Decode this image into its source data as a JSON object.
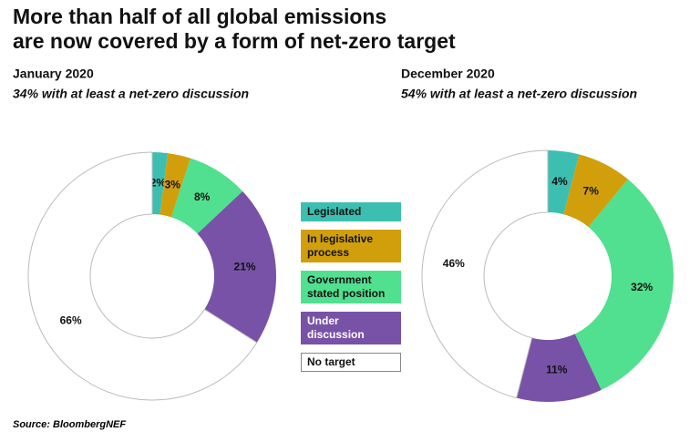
{
  "title": [
    "More than half of all global emissions",
    "are now covered by a form of net-zero target"
  ],
  "source": "Source: BloombergNEF",
  "chart_data": [
    {
      "type": "pie",
      "donut": true,
      "title": "January 2020",
      "subtitle": "34% with at least a net-zero discussion",
      "categories": [
        "Legislated",
        "In legislative process",
        "Government stated position",
        "Under discussion",
        "No target"
      ],
      "values": [
        2,
        3,
        8,
        21,
        66
      ],
      "value_labels": [
        "2%",
        "3%",
        "8%",
        "21%",
        "66%"
      ],
      "colors": [
        "#3cbfb0",
        "#d19f0c",
        "#50e08f",
        "#7852a7",
        "#ffffff"
      ]
    },
    {
      "type": "pie",
      "donut": true,
      "title": "December 2020",
      "subtitle": "54% with at least a net-zero discussion",
      "categories": [
        "Legislated",
        "In legislative process",
        "Government stated position",
        "Under discussion",
        "No target"
      ],
      "values": [
        4,
        7,
        32,
        11,
        46
      ],
      "value_labels": [
        "4%",
        "7%",
        "32%",
        "11%",
        "46%"
      ],
      "colors": [
        "#3cbfb0",
        "#d19f0c",
        "#50e08f",
        "#7852a7",
        "#ffffff"
      ]
    }
  ]
}
